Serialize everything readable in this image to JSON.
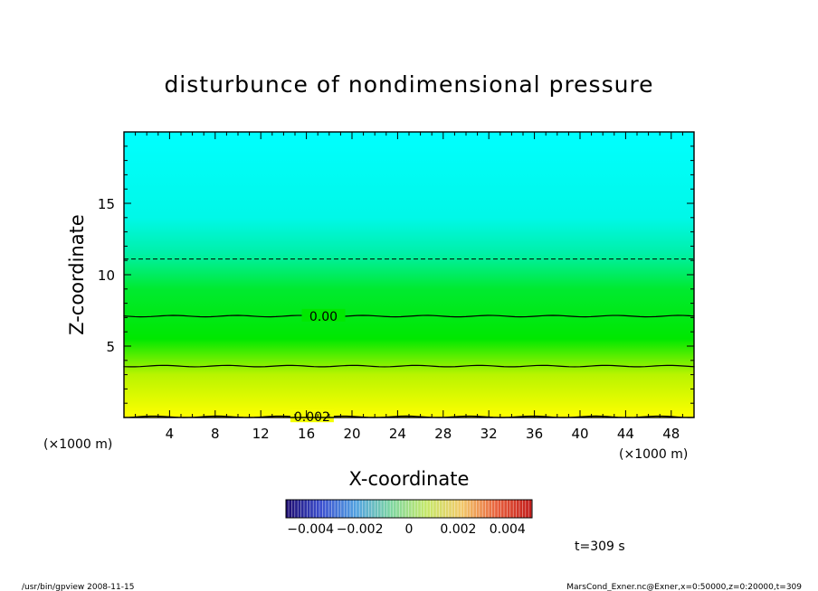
{
  "chart_data": {
    "type": "heatmap",
    "title": "disturbunce of nondimensional pressure",
    "xlabel": "X-coordinate",
    "ylabel": "Z-coordinate",
    "x_unit": "(×1000 m)",
    "y_unit": "(×1000 m)",
    "xlim": [
      0,
      50
    ],
    "ylim": [
      0,
      20
    ],
    "x_ticks": [
      4,
      8,
      12,
      16,
      20,
      24,
      28,
      32,
      36,
      40,
      44,
      48
    ],
    "y_ticks": [
      5,
      10,
      15
    ],
    "color_gradient": [
      {
        "z": 0,
        "color": "#ffff00"
      },
      {
        "z": 3,
        "color": "#b9f400"
      },
      {
        "z": 5.5,
        "color": "#00e800"
      },
      {
        "z": 9,
        "color": "#00ea30"
      },
      {
        "z": 11.5,
        "color": "#00f0a8"
      },
      {
        "z": 14,
        "color": "#00f8e8"
      },
      {
        "z": 20,
        "color": "#00ffff"
      }
    ],
    "contours": [
      {
        "level": "0.00",
        "z": 7.1,
        "style": "solid",
        "label": "0.00",
        "label_x": 17.5
      },
      {
        "level": "",
        "z": 3.6,
        "style": "solid",
        "label": "",
        "label_x": null
      },
      {
        "level": "0.002",
        "z": 0.05,
        "style": "solid",
        "label": "0.002",
        "label_x": 16.5
      },
      {
        "level": "",
        "z": 11.1,
        "style": "dashed",
        "label": "",
        "label_x": null
      }
    ],
    "colorbar": {
      "min": -0.005,
      "max": 0.005,
      "tick_labels": [
        "−0.004",
        "−0.002",
        "0",
        "0.002",
        "0.004"
      ],
      "tick_values": [
        -0.004,
        -0.002,
        0,
        0.002,
        0.004
      ],
      "stops": [
        "#1c0a6e",
        "#3b4fcf",
        "#52a2e0",
        "#7ed6a0",
        "#c6e86a",
        "#f2c96a",
        "#e8603c",
        "#c01818"
      ]
    },
    "time_label": "t=309 s"
  },
  "footer": {
    "left": "/usr/bin/gpview   2008-11-15",
    "right": "MarsCond_Exner.nc@Exner,x=0:50000,z=0:20000,t=309"
  }
}
